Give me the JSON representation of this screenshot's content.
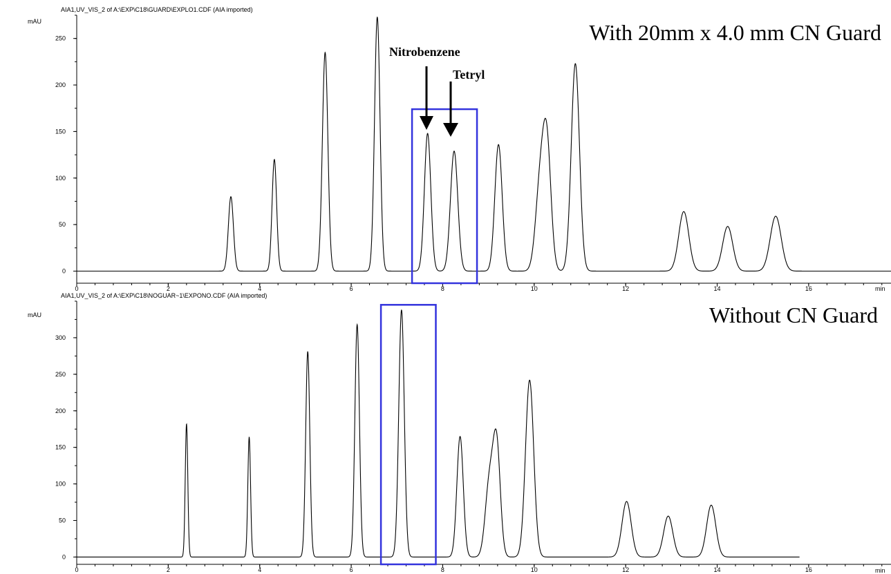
{
  "colors": {
    "trace": "#000000",
    "highlight_box": "#3333dd",
    "background": "#ffffff"
  },
  "chart_data": [
    {
      "type": "line",
      "file_label": "AIA1,UV_VIS_2 of A:\\EXP\\C18\\GUARD\\EXPLO1.CDF (AIA imported)",
      "title": "With 20mm x 4.0 mm CN Guard",
      "xlabel": "min",
      "ylabel": "mAU",
      "xlim": [
        0,
        17.8
      ],
      "ylim": [
        -13,
        275
      ],
      "x_ticks": [
        0,
        2,
        4,
        6,
        8,
        10,
        12,
        14,
        16
      ],
      "y_ticks": [
        0,
        50,
        100,
        150,
        200,
        250
      ],
      "grid": false,
      "series": [
        {
          "peaks": [
            {
              "rt": 3.37,
              "height": 80,
              "width": 0.055
            },
            {
              "rt": 4.32,
              "height": 120,
              "width": 0.05
            },
            {
              "rt": 5.43,
              "height": 235,
              "width": 0.06
            },
            {
              "rt": 6.57,
              "height": 273,
              "width": 0.06
            },
            {
              "rt": 7.67,
              "height": 148,
              "width": 0.07
            },
            {
              "rt": 8.25,
              "height": 129,
              "width": 0.08
            },
            {
              "rt": 9.22,
              "height": 136,
              "width": 0.08
            },
            {
              "rt": 10.13,
              "height": 90,
              "width": 0.1
            },
            {
              "rt": 10.28,
              "height": 127,
              "width": 0.09
            },
            {
              "rt": 10.9,
              "height": 223,
              "width": 0.09
            },
            {
              "rt": 13.27,
              "height": 64,
              "width": 0.11
            },
            {
              "rt": 14.23,
              "height": 48,
              "width": 0.11
            },
            {
              "rt": 15.28,
              "height": 59,
              "width": 0.12
            }
          ]
        }
      ],
      "x_end": 17.8,
      "highlight": {
        "x0": 7.33,
        "x1": 8.75,
        "y0": -13,
        "y1": 174
      },
      "annotations": [
        {
          "text": "Nitrobenzene",
          "x": 7.67,
          "y": 145
        },
        {
          "text": "Tetryl",
          "x": 8.25,
          "y": 148
        }
      ]
    },
    {
      "type": "line",
      "file_label": "AIA1,UV_VIS_2 of A:\\EXP\\C18\\NOGUAR~1\\EXPONO.CDF (AIA imported)",
      "title": "Without  CN Guard",
      "xlabel": "min",
      "ylabel": "mAU",
      "xlim": [
        0,
        17.8
      ],
      "ylim": [
        -10,
        350
      ],
      "x_ticks": [
        0,
        2,
        4,
        6,
        8,
        10,
        12,
        14,
        16
      ],
      "y_ticks": [
        0,
        50,
        100,
        150,
        200,
        250,
        300
      ],
      "grid": false,
      "series": [
        {
          "peaks": [
            {
              "rt": 2.4,
              "height": 182,
              "width": 0.028
            },
            {
              "rt": 3.77,
              "height": 164,
              "width": 0.03
            },
            {
              "rt": 5.05,
              "height": 281,
              "width": 0.045
            },
            {
              "rt": 6.13,
              "height": 318,
              "width": 0.05
            },
            {
              "rt": 7.1,
              "height": 338,
              "width": 0.06
            },
            {
              "rt": 8.38,
              "height": 165,
              "width": 0.07
            },
            {
              "rt": 9.02,
              "height": 100,
              "width": 0.09
            },
            {
              "rt": 9.18,
              "height": 150,
              "width": 0.08
            },
            {
              "rt": 9.9,
              "height": 242,
              "width": 0.09
            },
            {
              "rt": 12.02,
              "height": 76,
              "width": 0.1
            },
            {
              "rt": 12.93,
              "height": 56,
              "width": 0.1
            },
            {
              "rt": 13.87,
              "height": 71,
              "width": 0.1
            }
          ]
        }
      ],
      "x_end": 15.8,
      "highlight": {
        "x0": 6.65,
        "x1": 7.85,
        "y0": -10,
        "y1": 345
      },
      "annotations": []
    }
  ]
}
